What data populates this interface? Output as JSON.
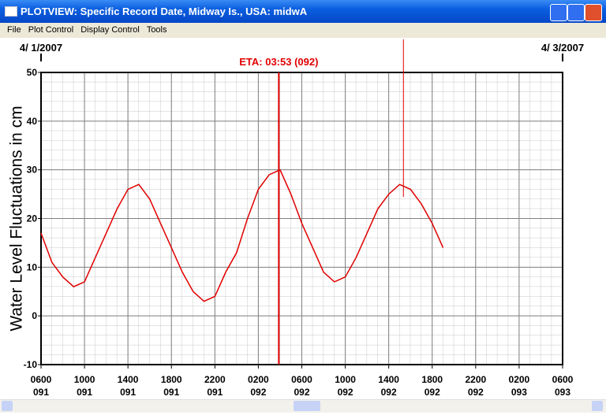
{
  "window": {
    "title": "PLOTVIEW: Specific Record Date, Midway Is., USA: midwA",
    "menu": [
      "File",
      "Plot Control",
      "Display Control",
      "Tools"
    ]
  },
  "chart_data": {
    "type": "line",
    "y_label": "Water Level Fluctuations in cm",
    "date_labels": [
      "4/ 1/2007",
      "4/ 3/2007"
    ],
    "color": "#e00000",
    "grid": true,
    "xlim": [
      91.25,
      93.25
    ],
    "ylim": [
      -10,
      50
    ],
    "yticks": [
      -10,
      0,
      10,
      20,
      30,
      40,
      50
    ],
    "xticks": [
      {
        "value": 91.25,
        "label": "0600\n091"
      },
      {
        "value": 91.4167,
        "label": "1000\n091"
      },
      {
        "value": 91.5833,
        "label": "1400\n091"
      },
      {
        "value": 91.75,
        "label": "1800\n091"
      },
      {
        "value": 91.9167,
        "label": "2200\n091"
      },
      {
        "value": 92.0833,
        "label": "0200\n092"
      },
      {
        "value": 92.25,
        "label": "0600\n092"
      },
      {
        "value": 92.4167,
        "label": "1000\n092"
      },
      {
        "value": 92.5833,
        "label": "1400\n092"
      },
      {
        "value": 92.75,
        "label": "1800\n092"
      },
      {
        "value": 92.9167,
        "label": "2200\n092"
      },
      {
        "value": 93.0833,
        "label": "0200\n093"
      },
      {
        "value": 93.25,
        "label": "0600\n093"
      }
    ],
    "x": [
      91.25,
      91.2917,
      91.3333,
      91.375,
      91.4167,
      91.4583,
      91.5,
      91.5417,
      91.5833,
      91.625,
      91.6667,
      91.7083,
      91.75,
      91.7917,
      91.8333,
      91.875,
      91.9167,
      91.9583,
      92.0,
      92.0417,
      92.0833,
      92.125,
      92.1667,
      92.2083,
      92.25,
      92.2917,
      92.3333,
      92.375,
      92.4167,
      92.4583,
      92.5,
      92.5417,
      92.5833,
      92.625,
      92.6667,
      92.7083,
      92.75,
      92.7917
    ],
    "values": [
      17,
      11,
      8,
      6,
      7,
      12,
      17,
      22,
      26,
      27,
      24,
      19,
      14,
      9,
      5,
      3,
      4,
      9,
      13,
      20,
      26,
      29,
      30,
      25,
      19,
      14,
      9,
      7,
      8,
      12,
      17,
      22,
      25,
      27,
      26,
      23,
      19,
      14
    ],
    "annotation": {
      "text": "ETA: 03:53 (092)",
      "x": 92.1618
    },
    "cursor_x": 92.6396
  }
}
